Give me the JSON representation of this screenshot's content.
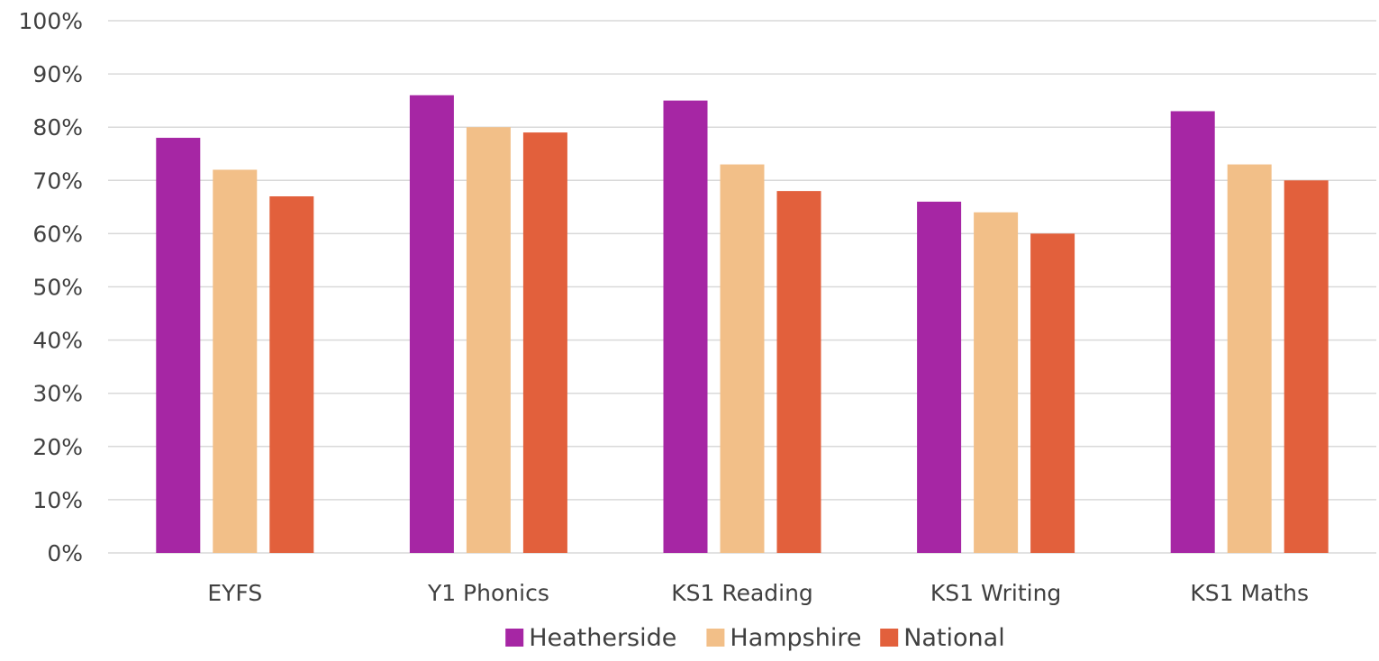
{
  "chart_data": {
    "type": "bar",
    "title": "",
    "xlabel": "",
    "ylabel": "",
    "categories": [
      "EYFS",
      "Y1 Phonics",
      "KS1 Reading",
      "KS1 Writing",
      "KS1 Maths"
    ],
    "series": [
      {
        "name": "Heatherside",
        "color": "#a626a4",
        "values": [
          78,
          86,
          85,
          66,
          83
        ]
      },
      {
        "name": "Hampshire",
        "color": "#f2bf88",
        "values": [
          72,
          80,
          73,
          64,
          73
        ]
      },
      {
        "name": "National",
        "color": "#e2603c",
        "values": [
          67,
          79,
          68,
          60,
          70
        ]
      }
    ],
    "ylim": [
      0,
      100
    ],
    "yticks": [
      "0%",
      "10%",
      "20%",
      "30%",
      "40%",
      "50%",
      "60%",
      "70%",
      "80%",
      "90%",
      "100%"
    ],
    "grid": true,
    "legend": "bottom-center"
  }
}
